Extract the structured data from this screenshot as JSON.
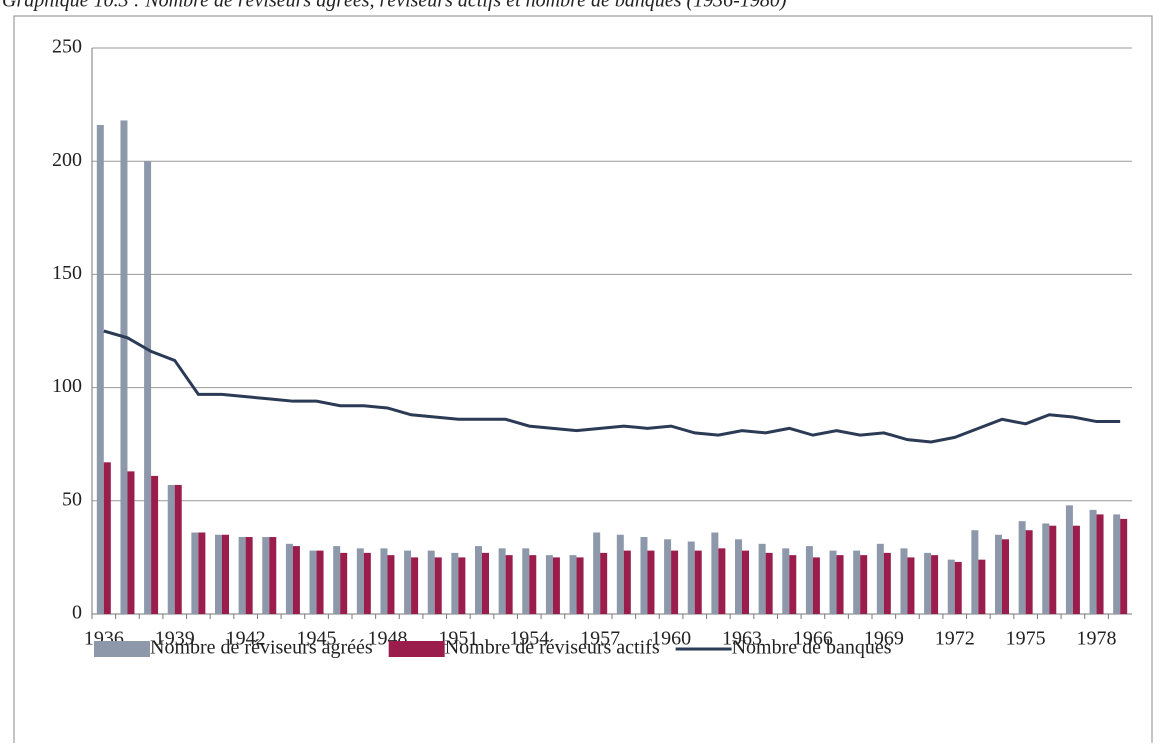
{
  "chart_data": {
    "type": "bar-line",
    "title": "Graphique 10.3 : Nombre de réviseurs agréés, réviseurs actifs et nombre de banques (1936-1980)",
    "categories": [
      "1936",
      null,
      null,
      "1939",
      null,
      null,
      "1942",
      null,
      null,
      "1945",
      null,
      null,
      "1948",
      null,
      null,
      "1951",
      null,
      null,
      "1954",
      null,
      null,
      "1957",
      null,
      null,
      "1960",
      null,
      null,
      "1963",
      null,
      null,
      "1966",
      null,
      null,
      "1969",
      null,
      null,
      "1972",
      null,
      null,
      "1975",
      null,
      null,
      "1978",
      null
    ],
    "series": [
      {
        "name": "Nombre de réviseurs agréés",
        "type": "bar",
        "color": "#8d99ab",
        "values": [
          216,
          218,
          200,
          57,
          36,
          35,
          34,
          34,
          31,
          28,
          30,
          29,
          29,
          28,
          28,
          27,
          30,
          29,
          29,
          26,
          26,
          36,
          35,
          34,
          33,
          32,
          36,
          33,
          31,
          29,
          30,
          28,
          28,
          31,
          29,
          27,
          24,
          37,
          35,
          41,
          40,
          48,
          46,
          44
        ]
      },
      {
        "name": "Nombre de réviseurs actifs",
        "type": "bar",
        "color": "#9b1d4c",
        "values": [
          67,
          63,
          61,
          57,
          36,
          35,
          34,
          34,
          30,
          28,
          27,
          27,
          26,
          25,
          25,
          25,
          27,
          26,
          26,
          25,
          25,
          27,
          28,
          28,
          28,
          28,
          29,
          28,
          27,
          26,
          25,
          26,
          26,
          27,
          25,
          26,
          23,
          24,
          33,
          37,
          39,
          39,
          44,
          42
        ]
      },
      {
        "name": "Nombre de banques",
        "type": "line",
        "color": "#2b3a55",
        "values": [
          125,
          122,
          116,
          112,
          97,
          97,
          96,
          95,
          94,
          94,
          92,
          92,
          91,
          88,
          87,
          86,
          86,
          86,
          83,
          82,
          81,
          82,
          83,
          82,
          83,
          80,
          79,
          81,
          80,
          82,
          79,
          81,
          79,
          80,
          77,
          76,
          78,
          82,
          86,
          84,
          88,
          87,
          85,
          85
        ]
      }
    ],
    "ylim": [
      0,
      250
    ],
    "yticks": [
      0,
      50,
      100,
      150,
      200,
      250
    ],
    "grid": true,
    "legend": "bottom"
  }
}
